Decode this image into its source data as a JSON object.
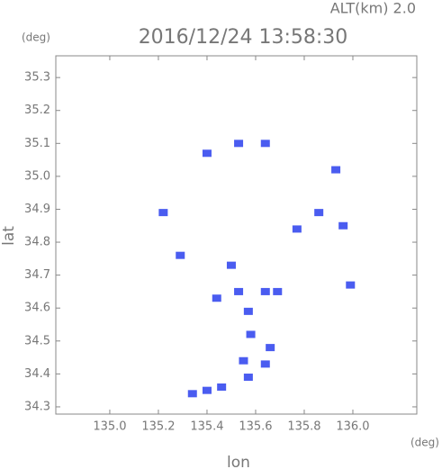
{
  "chart_data": {
    "type": "scatter",
    "title": "2016/12/24 13:58:30",
    "subtitle": "ALT(km) 2.0",
    "y_unit": "(deg)",
    "x_unit": "(deg)",
    "x_label": "lon",
    "y_label": "lat",
    "xlim": [
      134.778,
      136.263
    ],
    "ylim": [
      34.278,
      35.366
    ],
    "xticks": [
      {
        "value": 135.0,
        "label": "135.0"
      },
      135.2,
      135.4,
      135.6,
      135.8,
      {
        "value": 136.0,
        "label": "136.0"
      }
    ],
    "yticks": [
      34.3,
      34.4,
      34.5,
      34.6,
      34.7,
      34.8,
      34.9,
      {
        "value": 35.0,
        "label": "35.0"
      },
      35.1,
      35.2,
      35.3
    ],
    "series": [
      {
        "color": "#4a5cf0",
        "x": [
          135.53,
          135.64,
          135.4,
          135.93,
          135.22,
          135.86,
          135.96,
          135.77,
          135.29,
          135.5,
          135.99,
          135.44,
          135.53,
          135.64,
          135.69,
          135.57,
          135.58,
          135.66,
          135.55,
          135.64,
          135.57,
          135.46,
          135.4,
          135.34
        ],
        "y": [
          35.1,
          35.1,
          35.07,
          35.02,
          34.89,
          34.89,
          34.85,
          34.84,
          34.76,
          34.73,
          34.67,
          34.63,
          34.65,
          34.65,
          34.65,
          34.59,
          34.52,
          34.48,
          34.44,
          34.43,
          34.39,
          34.36,
          34.35,
          34.34
        ]
      }
    ]
  }
}
